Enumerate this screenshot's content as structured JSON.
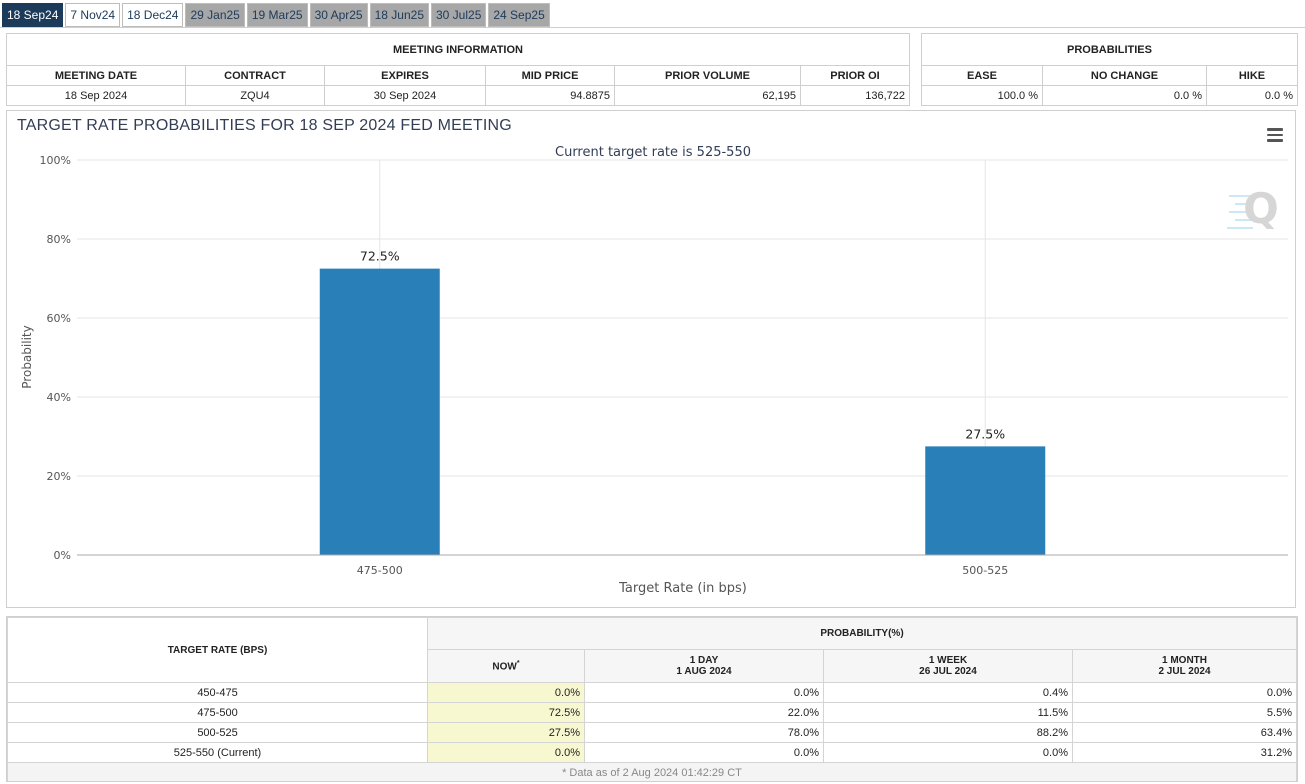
{
  "tabs": [
    {
      "label": "18 Sep24",
      "state": "active"
    },
    {
      "label": "7 Nov24",
      "state": "light"
    },
    {
      "label": "18 Dec24",
      "state": "light"
    },
    {
      "label": "29 Jan25",
      "state": "grey"
    },
    {
      "label": "19 Mar25",
      "state": "grey"
    },
    {
      "label": "30 Apr25",
      "state": "grey"
    },
    {
      "label": "18 Jun25",
      "state": "grey"
    },
    {
      "label": "30 Jul25",
      "state": "grey"
    },
    {
      "label": "24 Sep25",
      "state": "grey"
    }
  ],
  "meeting_info": {
    "heading": "MEETING INFORMATION",
    "columns": [
      "MEETING DATE",
      "CONTRACT",
      "EXPIRES",
      "MID PRICE",
      "PRIOR VOLUME",
      "PRIOR OI"
    ],
    "values": [
      "18 Sep 2024",
      "ZQU4",
      "30 Sep 2024",
      "94.8875",
      "62,195",
      "136,722"
    ]
  },
  "probabilities": {
    "heading": "PROBABILITIES",
    "columns": [
      "EASE",
      "NO CHANGE",
      "HIKE"
    ],
    "values": [
      "100.0 %",
      "0.0 %",
      "0.0 %"
    ]
  },
  "chart": {
    "title": "TARGET RATE PROBABILITIES FOR 18 SEP 2024 FED MEETING",
    "subtitle": "Current target rate is 525-550",
    "watermark": "Q",
    "menu_icon": "hamburger-menu-icon",
    "bar_color": "#2980b9"
  },
  "chart_data": {
    "type": "bar",
    "title": "TARGET RATE PROBABILITIES FOR 18 SEP 2024 FED MEETING",
    "subtitle": "Current target rate is 525-550",
    "categories": [
      "475-500",
      "500-525"
    ],
    "values": [
      72.5,
      27.5
    ],
    "value_labels": [
      "72.5%",
      "27.5%"
    ],
    "xlabel": "Target Rate (in bps)",
    "ylabel": "Probability",
    "ylim": [
      0,
      100
    ],
    "yticks": [
      "0%",
      "20%",
      "40%",
      "60%",
      "80%",
      "100%"
    ],
    "ytick_values": [
      0,
      20,
      40,
      60,
      80,
      100
    ],
    "grid": true
  },
  "rates_table": {
    "target_rate_header": "TARGET RATE (BPS)",
    "probability_header": "PROBABILITY(%)",
    "sub_headers": [
      {
        "line1": "NOW",
        "line2": "",
        "marker": "*"
      },
      {
        "line1": "1 DAY",
        "line2": "1 AUG 2024",
        "marker": ""
      },
      {
        "line1": "1 WEEK",
        "line2": "26 JUL 2024",
        "marker": ""
      },
      {
        "line1": "1 MONTH",
        "line2": "2 JUL 2024",
        "marker": ""
      }
    ],
    "rows": [
      {
        "rate": "450-475",
        "now": "0.0%",
        "day": "0.0%",
        "week": "0.4%",
        "month": "0.0%"
      },
      {
        "rate": "475-500",
        "now": "72.5%",
        "day": "22.0%",
        "week": "11.5%",
        "month": "5.5%"
      },
      {
        "rate": "500-525",
        "now": "27.5%",
        "day": "78.0%",
        "week": "88.2%",
        "month": "63.4%"
      },
      {
        "rate": "525-550 (Current)",
        "now": "0.0%",
        "day": "0.0%",
        "week": "0.0%",
        "month": "31.2%"
      }
    ],
    "footnote": "* Data as of 2 Aug 2024 01:42:29 CT"
  }
}
